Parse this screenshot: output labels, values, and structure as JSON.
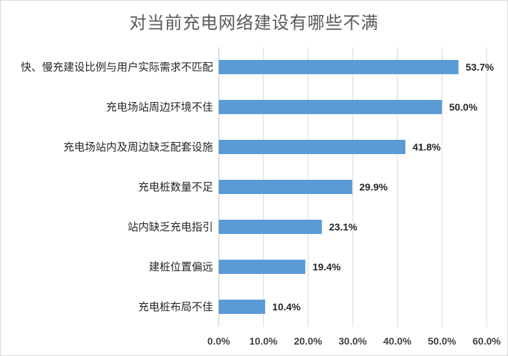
{
  "chart_data": {
    "type": "bar",
    "orientation": "horizontal",
    "title": "对当前充电网络建设有哪些不满",
    "categories": [
      "快、慢充建设比例与用户实际需求不匹配",
      "充电场站周边环境不佳",
      "充电场站内及周边缺乏配套设施",
      "充电桩数量不足",
      "站内缺乏充电指引",
      "建桩位置偏远",
      "充电桩布局不佳"
    ],
    "values": [
      53.7,
      50.0,
      41.8,
      29.9,
      23.1,
      19.4,
      10.4
    ],
    "value_labels": [
      "53.7%",
      "50.0%",
      "41.8%",
      "29.9%",
      "23.1%",
      "19.4%",
      "10.4%"
    ],
    "xlim": [
      0,
      60
    ],
    "xticks": [
      0,
      10,
      20,
      30,
      40,
      50,
      60
    ],
    "xtick_labels": [
      "0.0%",
      "10.0%",
      "20.0%",
      "30.0%",
      "40.0%",
      "50.0%",
      "60.0%"
    ],
    "grid": true,
    "legend": "none",
    "colors": {
      "bar": "#5b9bd5",
      "grid": "#d9d9d9",
      "axis": "#bfbfbf"
    }
  }
}
